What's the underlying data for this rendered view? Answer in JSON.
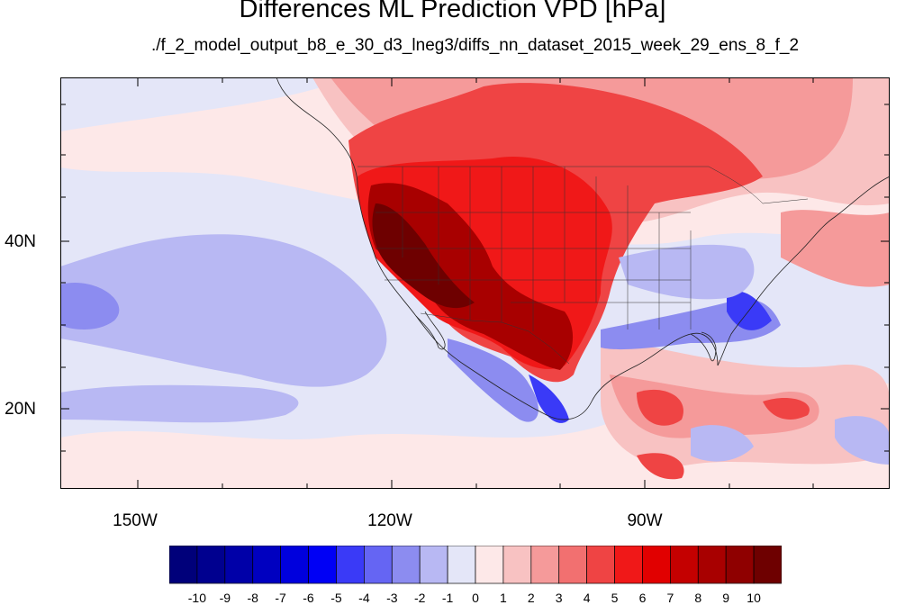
{
  "title": "Differences ML Prediction VPD [hPa]",
  "subtitle": "./f_2_model_output_b8_e_30_d3_lneg3/diffs_nn_dataset_2015_week_29_ens_8_f_2",
  "lon_labels": [
    "150W",
    "120W",
    "90W"
  ],
  "lat_labels": [
    "40N",
    "20N"
  ],
  "colorbar": {
    "labels": [
      "-10",
      "-9",
      "-8",
      "-7",
      "-6",
      "-5",
      "-4",
      "-3",
      "-2",
      "-1",
      "0",
      "1",
      "2",
      "3",
      "4",
      "5",
      "6",
      "7",
      "8",
      "9",
      "10"
    ],
    "colors": [
      "#00007a",
      "#00008f",
      "#0000a8",
      "#0000c0",
      "#0000dd",
      "#0000f5",
      "#3a3af7",
      "#6565f3",
      "#8c8cf0",
      "#b8b8f3",
      "#e4e6f8",
      "#fde8e8",
      "#f8c2c2",
      "#f59a9a",
      "#f27070",
      "#ef4444",
      "#f01818",
      "#e10000",
      "#c40000",
      "#a80000",
      "#8f0000",
      "#6e0000"
    ]
  },
  "map": {
    "extent": {
      "lon": [
        -160,
        -62
      ],
      "lat": [
        11,
        59
      ]
    },
    "colors": {
      "light_blue": "#e4e6f8",
      "pale_pink": "#fde8e8",
      "pink": "#f8c2c2",
      "salmon": "#f59a9a",
      "red": "#ef4444",
      "bright_red": "#f01818",
      "dark_red": "#a80000",
      "darkest_red": "#6e0000",
      "blue_mid": "#8c8cf0",
      "blue_strong": "#3a3af7",
      "blue_light": "#b8b8f3"
    }
  }
}
